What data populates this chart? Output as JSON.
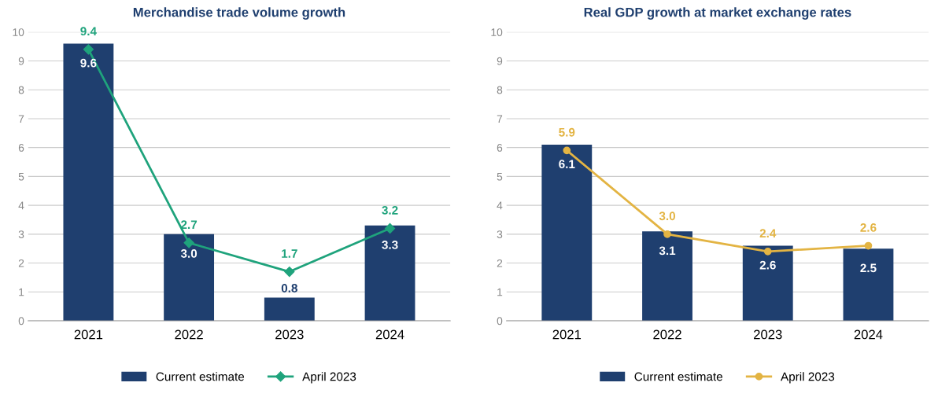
{
  "chart_data": [
    {
      "type": "bar",
      "title": "Merchandise trade volume growth",
      "categories": [
        "2021",
        "2022",
        "2023",
        "2024"
      ],
      "series": [
        {
          "name": "Current estimate",
          "color": "#1f3f6f",
          "values": [
            9.6,
            3.0,
            0.8,
            3.3
          ],
          "value_labels": [
            "9.6",
            "3.0",
            "0.8",
            "3.3"
          ]
        },
        {
          "name": "April 2023",
          "type": "line",
          "color": "#1fa37c",
          "marker": "diamond",
          "values": [
            9.4,
            2.7,
            1.7,
            3.2
          ],
          "value_labels": [
            "9.4",
            "2.7",
            "1.7",
            "3.2"
          ]
        }
      ],
      "ylim": [
        0,
        10
      ],
      "yticks": [
        0,
        1,
        2,
        3,
        4,
        5,
        6,
        7,
        8,
        9,
        10
      ],
      "grid": "y",
      "legend": "bottom"
    },
    {
      "type": "bar",
      "title": "Real GDP growth at market exchange rates",
      "categories": [
        "2021",
        "2022",
        "2023",
        "2024"
      ],
      "series": [
        {
          "name": "Current estimate",
          "color": "#1f3f6f",
          "values": [
            6.1,
            3.1,
            2.6,
            2.5
          ],
          "value_labels": [
            "6.1",
            "3.1",
            "2.6",
            "2.5"
          ]
        },
        {
          "name": "April 2023",
          "type": "line",
          "color": "#e3b443",
          "marker": "circle",
          "values": [
            5.9,
            3.0,
            2.4,
            2.6
          ],
          "value_labels": [
            "5.9",
            "3.0",
            "2.4",
            "2.6"
          ]
        }
      ],
      "ylim": [
        0,
        10
      ],
      "yticks": [
        0,
        1,
        2,
        3,
        4,
        5,
        6,
        7,
        8,
        9,
        10
      ],
      "grid": "y",
      "legend": "bottom"
    }
  ]
}
